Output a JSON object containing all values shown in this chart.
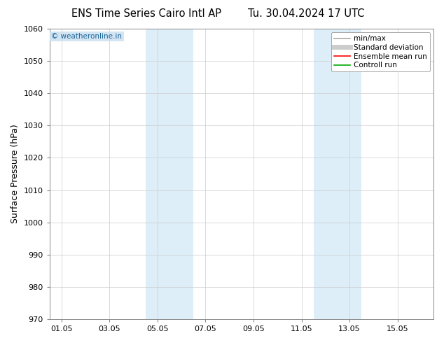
{
  "title_left": "ENS Time Series Cairo Intl AP",
  "title_right": "Tu. 30.04.2024 17 UTC",
  "ylabel": "Surface Pressure (hPa)",
  "ylim": [
    970,
    1060
  ],
  "yticks": [
    970,
    980,
    990,
    1000,
    1010,
    1020,
    1030,
    1040,
    1050,
    1060
  ],
  "xtick_labels": [
    "01.05",
    "03.05",
    "05.05",
    "07.05",
    "09.05",
    "11.05",
    "13.05",
    "15.05"
  ],
  "xtick_positions": [
    0,
    2,
    4,
    6,
    8,
    10,
    12,
    14
  ],
  "xlim": [
    -0.5,
    15.5
  ],
  "shade_bands": [
    {
      "x_start": 3.5,
      "x_end": 5.5,
      "color": "#ddeef8"
    },
    {
      "x_start": 10.5,
      "x_end": 12.5,
      "color": "#ddeef8"
    }
  ],
  "watermark": "© weatheronline.in",
  "watermark_color": "#1a6699",
  "watermark_bg": "#cce0f0",
  "background_color": "#ffffff",
  "plot_bg_color": "#ffffff",
  "grid_color": "#cccccc",
  "spine_color": "#888888",
  "legend_items": [
    {
      "label": "min/max",
      "color": "#aaaaaa",
      "lw": 1.2
    },
    {
      "label": "Standard deviation",
      "color": "#cccccc",
      "lw": 5
    },
    {
      "label": "Ensemble mean run",
      "color": "#ff0000",
      "lw": 1.2
    },
    {
      "label": "Controll run",
      "color": "#00aa00",
      "lw": 1.2
    }
  ],
  "title_fontsize": 10.5,
  "ylabel_fontsize": 9,
  "tick_fontsize": 8,
  "legend_fontsize": 7.5
}
